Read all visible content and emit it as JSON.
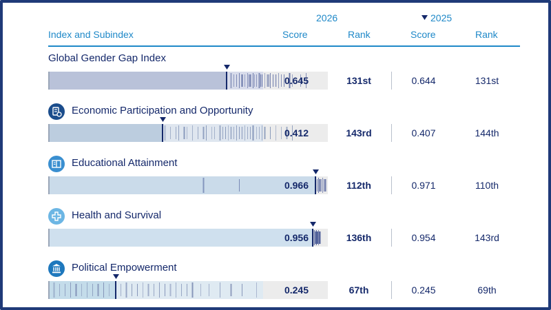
{
  "header": {
    "index_label": "Index and Subindex",
    "year_2026": "2026",
    "year_2025": "2025",
    "score_label": "Score",
    "rank_label": "Rank"
  },
  "colors": {
    "accent": "#1e88c8",
    "navy": "#14286a",
    "bar_background": "#ececec"
  },
  "chart_data": {
    "type": "bar",
    "xlim": [
      0,
      1
    ],
    "rows": [
      {
        "name": "Global Gender Gap Index",
        "icon": "",
        "score_2026": 0.645,
        "score_2026_label": "0.645",
        "rank_2026": "131st",
        "score_2025": 0.644,
        "score_2025_label": "0.644",
        "rank_2025": "131st",
        "fill_color": "#b9c2d9",
        "light_color": "#d8dceb",
        "tick_color": "#5f6ea3",
        "dist": [
          0.66,
          0.67,
          0.68,
          0.69,
          0.7,
          0.71,
          0.72,
          0.725,
          0.73,
          0.74,
          0.745,
          0.75,
          0.76,
          0.765,
          0.77,
          0.78,
          0.79,
          0.795,
          0.8,
          0.81,
          0.82,
          0.83,
          0.84,
          0.85,
          0.87,
          0.88,
          0.91,
          0.93
        ]
      },
      {
        "name": "Economic Participation and Opportunity",
        "icon": "economy-icon",
        "score_2026": 0.412,
        "score_2026_label": "0.412",
        "rank_2026": "143rd",
        "score_2025": 0.407,
        "score_2025_label": "0.407",
        "rank_2025": "144th",
        "fill_color": "#bccddf",
        "light_color": "#dfe6ef",
        "tick_color": "#8294b7",
        "dist": [
          0.42,
          0.44,
          0.46,
          0.47,
          0.49,
          0.5,
          0.52,
          0.54,
          0.56,
          0.57,
          0.59,
          0.6,
          0.62,
          0.63,
          0.64,
          0.65,
          0.66,
          0.67,
          0.68,
          0.69,
          0.7,
          0.71,
          0.72,
          0.73,
          0.74,
          0.75,
          0.76,
          0.77,
          0.78,
          0.8,
          0.82,
          0.84,
          0.86,
          0.88
        ]
      },
      {
        "name": "Educational Attainment",
        "icon": "education-icon",
        "score_2026": 0.966,
        "score_2026_label": "0.966",
        "rank_2026": "112th",
        "score_2025": 0.971,
        "score_2025_label": "0.971",
        "rank_2025": "110th",
        "fill_color": "#cadbea",
        "light_color": "#dde8f2",
        "tick_color": "#4a5c9a",
        "dist": [
          0.56,
          0.69,
          0.97,
          0.975,
          0.98,
          0.985,
          0.99,
          0.995,
          1.0
        ]
      },
      {
        "name": "Health and Survival",
        "icon": "health-icon",
        "score_2026": 0.956,
        "score_2026_label": "0.956",
        "rank_2026": "136th",
        "score_2025": 0.954,
        "score_2025_label": "0.954",
        "rank_2025": "143rd",
        "fill_color": "#cfe0ee",
        "light_color": "#e0ebf4",
        "tick_color": "#3a4c8e",
        "dist": [
          0.96,
          0.962,
          0.965,
          0.967,
          0.97,
          0.972,
          0.975,
          0.977,
          0.98
        ]
      },
      {
        "name": "Political Empowerment",
        "icon": "government-icon",
        "score_2026": 0.245,
        "score_2026_label": "0.245",
        "rank_2026": "67th",
        "score_2025": 0.245,
        "score_2025_label": "0.245",
        "rank_2025": "69th",
        "fill_color": "#c4dcea",
        "light_color": "#dfeaf2",
        "tick_color": "#7f8fb5",
        "dist": [
          0.02,
          0.04,
          0.06,
          0.08,
          0.1,
          0.12,
          0.14,
          0.16,
          0.18,
          0.2,
          0.22,
          0.26,
          0.28,
          0.3,
          0.32,
          0.34,
          0.36,
          0.38,
          0.4,
          0.42,
          0.44,
          0.46,
          0.48,
          0.5,
          0.52,
          0.55,
          0.58,
          0.62,
          0.66,
          0.7,
          0.75
        ]
      }
    ]
  }
}
